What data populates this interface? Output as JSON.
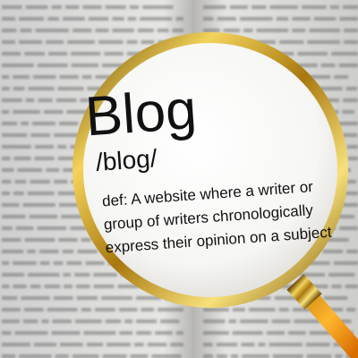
{
  "lens": {
    "headword": "Blog",
    "pronunciation": "/blog/",
    "definition": [
      "def: A website where a writer or",
      "group of writers chronologically",
      "express their opinion on a subject"
    ]
  }
}
